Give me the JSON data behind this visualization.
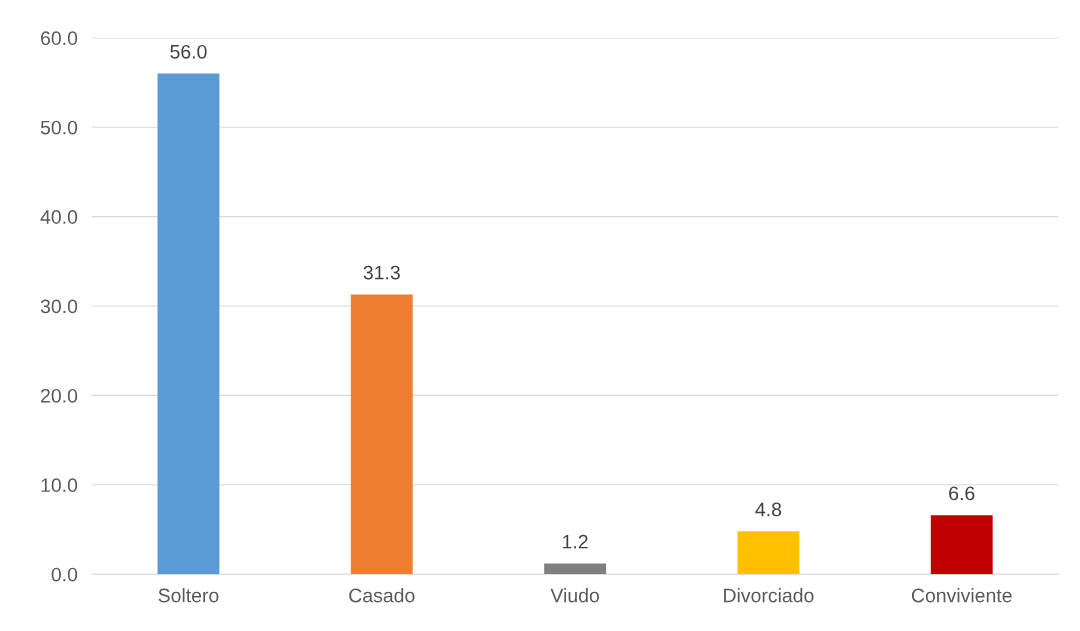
{
  "chart_data": {
    "type": "bar",
    "categories": [
      "Soltero",
      "Casado",
      "Viudo",
      "Divorciado",
      "Conviviente"
    ],
    "values": [
      56.0,
      31.3,
      1.2,
      4.8,
      6.6
    ],
    "colors": [
      "#5b9bd5",
      "#ed7d31",
      "#7f7f7f",
      "#ffc000",
      "#c00000"
    ],
    "ylim": [
      0,
      60
    ],
    "yticks": [
      {
        "value": 0,
        "label": "0.0"
      },
      {
        "value": 10,
        "label": "10.0"
      },
      {
        "value": 20,
        "label": "20.0"
      },
      {
        "value": 30,
        "label": "30.0"
      },
      {
        "value": 40,
        "label": "40.0"
      },
      {
        "value": 50,
        "label": "50.0"
      },
      {
        "value": 60,
        "label": "60.0"
      }
    ],
    "value_labels": [
      "56.0",
      "31.3",
      "1.2",
      "4.8",
      "6.6"
    ],
    "grid": "y"
  }
}
